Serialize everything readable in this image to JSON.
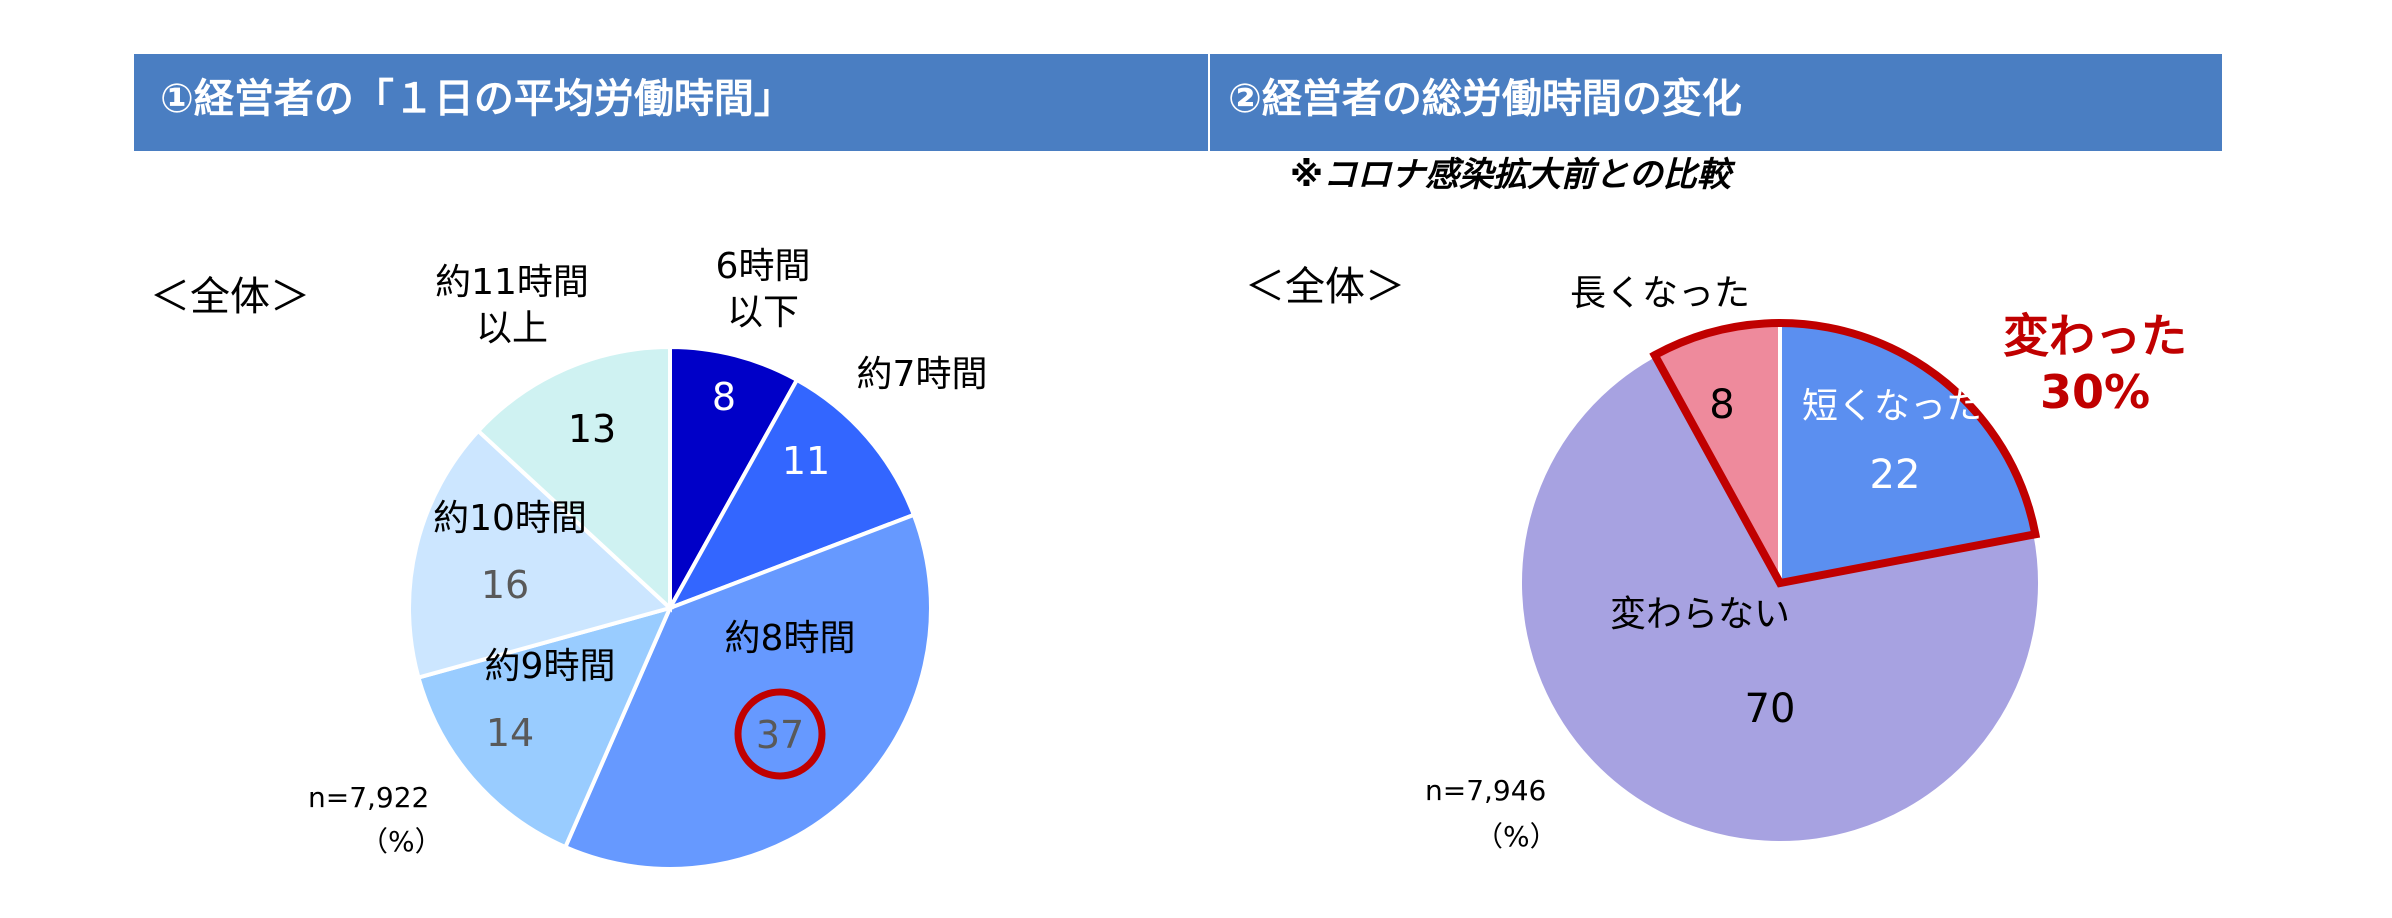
{
  "panels": [
    {
      "heading": "①経営者の「１日の平均労働時間」",
      "subheading": ""
    },
    {
      "heading": "②経営者の総労働時間の変化",
      "subheading": "※コロナ感染拡大前との比較"
    }
  ],
  "chart_data": [
    {
      "type": "pie",
      "group_label": "＜全体＞",
      "sample": "n=7,922",
      "unit": "（%）",
      "categories": [
        "6時間以下",
        "約7時間",
        "約8時間",
        "約9時間",
        "約10時間",
        "約11時間以上"
      ],
      "category_lines": [
        [
          "6時間",
          "以下"
        ],
        [
          "約7時間"
        ],
        [
          "約8時間"
        ],
        [
          "約9時間"
        ],
        [
          "約10時間"
        ],
        [
          "約11時間",
          "以上"
        ]
      ],
      "values": [
        8,
        11,
        37,
        14,
        16,
        13
      ],
      "colors": [
        "#0000c8",
        "#3366ff",
        "#6699ff",
        "#99ccff",
        "#cce6ff",
        "#cff2f2"
      ],
      "value_label_colors": [
        "#ffffff",
        "#ffffff",
        "#595959",
        "#595959",
        "#595959",
        "#000000"
      ],
      "highlight": "約8時間"
    },
    {
      "type": "pie",
      "group_label": "＜全体＞",
      "sample": "n=7,946",
      "unit": "（%）",
      "categories": [
        "短くなった",
        "変わらない",
        "長くなった"
      ],
      "values": [
        22,
        70,
        8
      ],
      "colors": [
        "#5b8ff0",
        "#a7a2e1",
        "#ee8a9c"
      ],
      "value_label_colors": [
        "#ffffff",
        "#000000",
        "#000000"
      ],
      "callout": {
        "lines": [
          "変わった",
          "30%"
        ],
        "color": "#c00000"
      }
    }
  ]
}
